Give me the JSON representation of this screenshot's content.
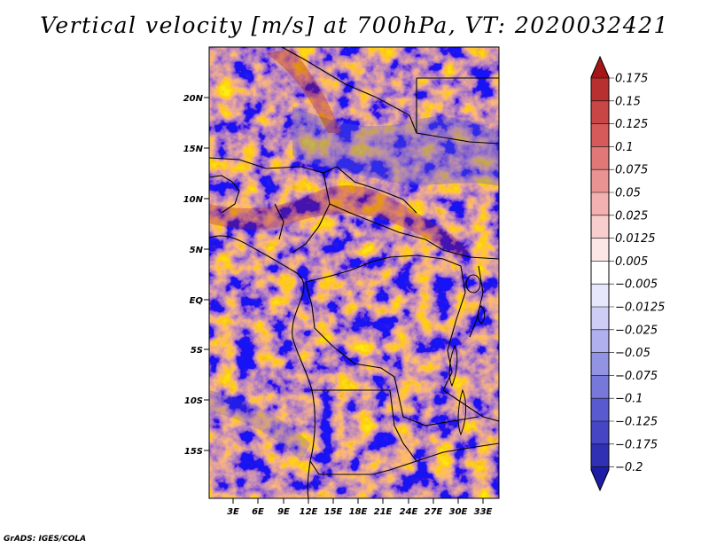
{
  "title": "Vertical velocity [m/s] at 700hPa, VT: 2020032421",
  "credit": "GrADS: IGES/COLA",
  "lat_labels": [
    "20N",
    "15N",
    "10N",
    "5N",
    "EQ",
    "5S",
    "10S",
    "15S"
  ],
  "lon_labels": [
    "3E",
    "6E",
    "9E",
    "12E",
    "15E",
    "18E",
    "21E",
    "24E",
    "27E",
    "30E",
    "33E"
  ],
  "colorbar": {
    "labels": [
      "0.175",
      "0.15",
      "0.125",
      "0.1",
      "0.075",
      "0.05",
      "0.025",
      "0.0125",
      "0.005",
      "−0.005",
      "−0.0125",
      "−0.025",
      "−0.05",
      "−0.075",
      "−0.1",
      "−0.125",
      "−0.175",
      "−0.2"
    ],
    "colors": [
      "#a51717",
      "#b83030",
      "#c84646",
      "#d65a5a",
      "#e07878",
      "#ea9393",
      "#f2b0b0",
      "#f8cdcd",
      "#fce6e6",
      "#ffffff",
      "#e6e6fc",
      "#cdcdf6",
      "#b0b0ee",
      "#9393e4",
      "#7878da",
      "#5a5ad0",
      "#4646c4",
      "#3030b4",
      "#1c1ca4"
    ]
  }
}
